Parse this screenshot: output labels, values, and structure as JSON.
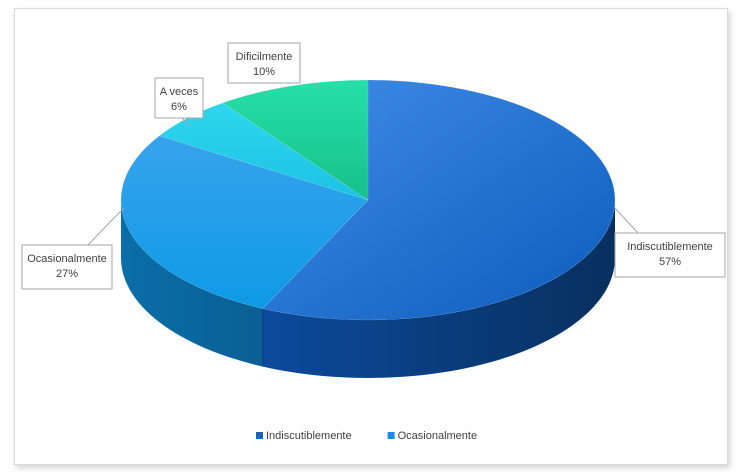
{
  "chart_data": {
    "type": "pie",
    "style": "3d",
    "slices": [
      {
        "label": "Indiscutiblemente",
        "percent_label": "57%",
        "value": 57,
        "color": "#1565c0"
      },
      {
        "label": "Ocasionalmente",
        "percent_label": "27%",
        "value": 27,
        "color": "#1e88e5"
      },
      {
        "label": "A veces",
        "percent_label": "6%",
        "value": 6,
        "color": "#22c7e6"
      },
      {
        "label": "Dificilmente",
        "percent_label": "10%",
        "value": 10,
        "color": "#1ed49a"
      }
    ],
    "legend": {
      "placement": "bottom",
      "entries": [
        {
          "label": "Indiscutiblemente",
          "color": "#1565c0"
        },
        {
          "label": "Ocasionalmente",
          "color": "#1e88e5"
        }
      ]
    }
  }
}
